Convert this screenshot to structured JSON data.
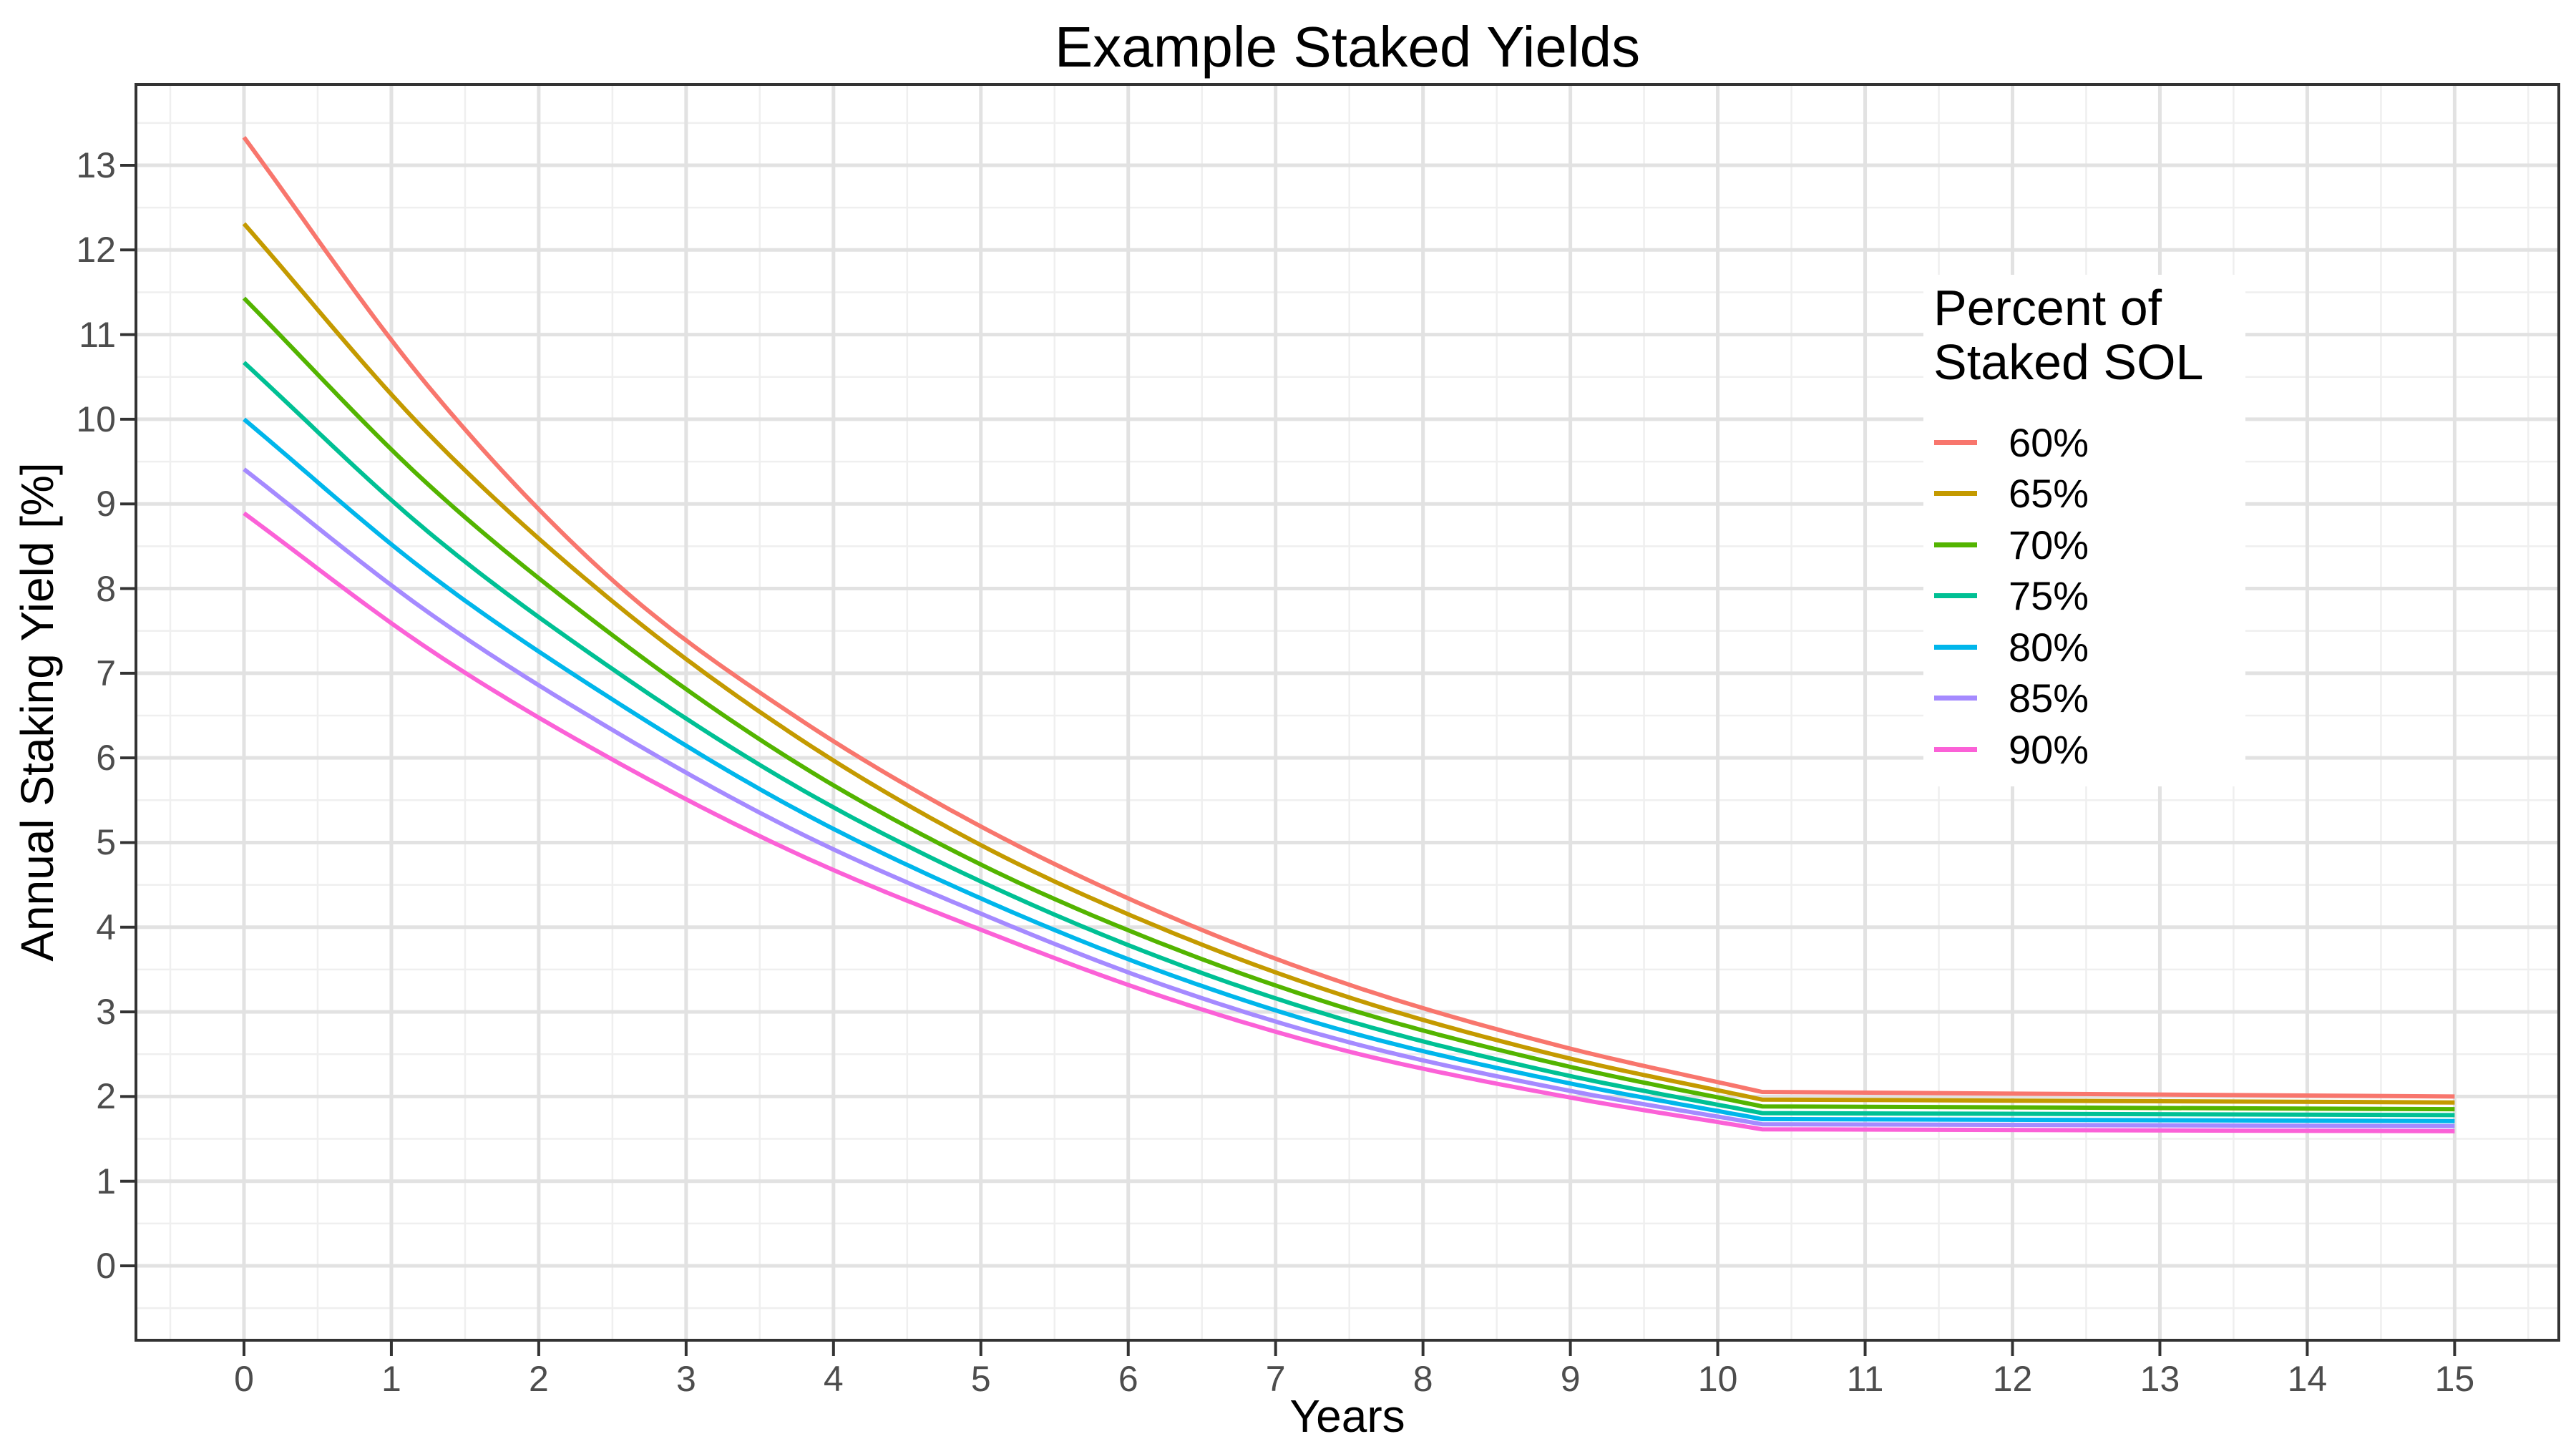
{
  "chart_data": {
    "type": "line",
    "title": "Example Staked Yields",
    "xlabel": "Years",
    "ylabel": "Annual Staking Yield [%]",
    "legend_title": "Percent of Staked SOL",
    "legend_position": "inside-right",
    "grid": true,
    "x_ticks": [
      0,
      1,
      2,
      3,
      4,
      5,
      6,
      7,
      8,
      9,
      10,
      11,
      12,
      13,
      14,
      15
    ],
    "y_ticks": [
      0,
      1,
      2,
      3,
      4,
      5,
      6,
      7,
      8,
      9,
      10,
      11,
      12,
      13
    ],
    "x_minor_step": 0.5,
    "y_minor_step": 0.5,
    "x_range": [
      -0.733,
      15.707
    ],
    "y_range": [
      -0.879,
      13.955
    ],
    "kink_t": 10.31,
    "series": [
      {
        "name": "60%",
        "color": "#F8766D",
        "points": [
          [
            0,
            13.33
          ],
          [
            1.25,
            10.39
          ],
          [
            2.5,
            8.1
          ],
          [
            3.75,
            6.48
          ],
          [
            5,
            5.19
          ],
          [
            6.25,
            4.15
          ],
          [
            7.5,
            3.32
          ],
          [
            8.9,
            2.61
          ],
          [
            10.31,
            2.05
          ],
          [
            15,
            2.0
          ]
        ]
      },
      {
        "name": "65%",
        "color": "#C49A00",
        "points": [
          [
            0,
            12.31
          ],
          [
            1.25,
            9.83
          ],
          [
            2.5,
            7.85
          ],
          [
            3.75,
            6.25
          ],
          [
            5,
            4.97
          ],
          [
            6.25,
            3.97
          ],
          [
            7.5,
            3.17
          ],
          [
            8.9,
            2.49
          ],
          [
            10.31,
            1.96
          ],
          [
            15,
            1.93
          ]
        ]
      },
      {
        "name": "70%",
        "color": "#53B400",
        "points": [
          [
            0,
            11.43
          ],
          [
            1.25,
            9.23
          ],
          [
            2.5,
            7.45
          ],
          [
            3.75,
            5.94
          ],
          [
            5,
            4.74
          ],
          [
            6.25,
            3.79
          ],
          [
            7.5,
            3.03
          ],
          [
            8.9,
            2.39
          ],
          [
            10.31,
            1.88
          ],
          [
            15,
            1.85
          ]
        ]
      },
      {
        "name": "75%",
        "color": "#00C094",
        "points": [
          [
            0,
            10.67
          ],
          [
            1.25,
            8.67
          ],
          [
            2.5,
            7.05
          ],
          [
            3.75,
            5.66
          ],
          [
            5,
            4.54
          ],
          [
            6.25,
            3.62
          ],
          [
            7.5,
            2.89
          ],
          [
            8.9,
            2.28
          ],
          [
            10.31,
            1.8
          ],
          [
            15,
            1.78
          ]
        ]
      },
      {
        "name": "80%",
        "color": "#00B6EB",
        "points": [
          [
            0,
            10.0
          ],
          [
            1.25,
            8.18
          ],
          [
            2.5,
            6.69
          ],
          [
            3.75,
            5.39
          ],
          [
            5,
            4.34
          ],
          [
            6.25,
            3.46
          ],
          [
            7.5,
            2.76
          ],
          [
            8.9,
            2.19
          ],
          [
            10.31,
            1.73
          ],
          [
            15,
            1.71
          ]
        ]
      },
      {
        "name": "85%",
        "color": "#A58AFF",
        "points": [
          [
            0,
            9.41
          ],
          [
            1.25,
            7.72
          ],
          [
            2.5,
            6.33
          ],
          [
            3.75,
            5.13
          ],
          [
            5,
            4.16
          ],
          [
            6.25,
            3.31
          ],
          [
            7.5,
            2.64
          ],
          [
            8.9,
            2.1
          ],
          [
            10.31,
            1.67
          ],
          [
            15,
            1.65
          ]
        ]
      },
      {
        "name": "90%",
        "color": "#FB61D7",
        "points": [
          [
            0,
            8.89
          ],
          [
            1.25,
            7.29
          ],
          [
            2.5,
            5.98
          ],
          [
            3.75,
            4.87
          ],
          [
            5,
            3.97
          ],
          [
            6.25,
            3.17
          ],
          [
            7.5,
            2.53
          ],
          [
            8.9,
            2.02
          ],
          [
            10.31,
            1.61
          ],
          [
            15,
            1.59
          ]
        ]
      }
    ],
    "style": {
      "panel_background": "#FFFFFF",
      "panel_border_color": "#333333",
      "major_grid_color": "#E2E2E2",
      "minor_grid_color": "#EFEFEF",
      "tick_mark_color": "#333333",
      "tick_label_color": "#4D4D4D",
      "text_color": "#000000",
      "line_width": 6
    }
  }
}
